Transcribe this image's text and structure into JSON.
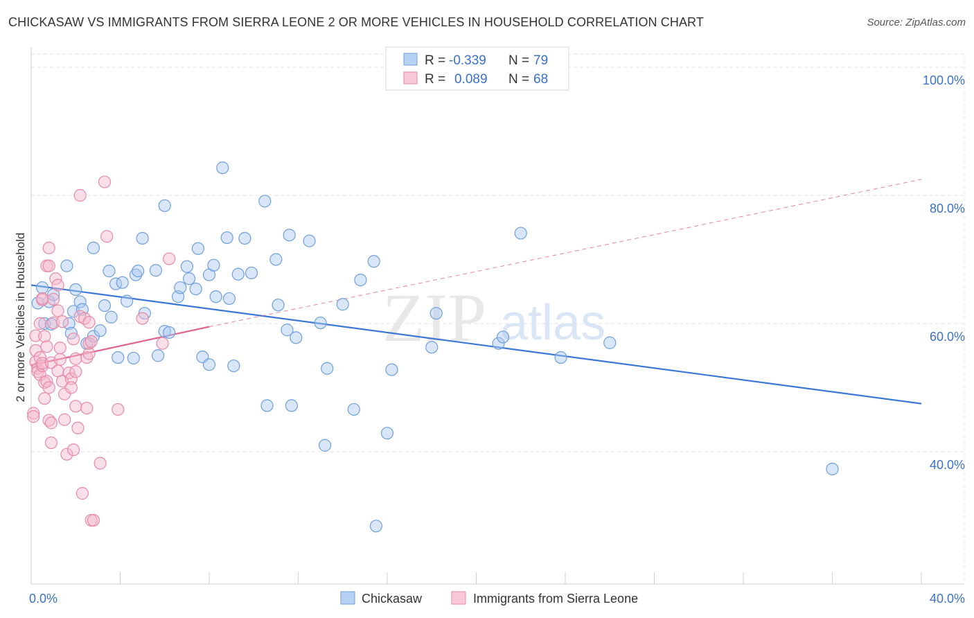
{
  "title": "CHICKASAW VS IMMIGRANTS FROM SIERRA LEONE 2 OR MORE VEHICLES IN HOUSEHOLD CORRELATION CHART",
  "source": "Source: ZipAtlas.com",
  "watermark": {
    "zip": "ZIP",
    "atlas": "atlas"
  },
  "chart_data": {
    "type": "scatter",
    "ylabel": "2 or more Vehicles in Household",
    "xlim": [
      0,
      40
    ],
    "ylim": [
      20,
      102
    ],
    "x_ticks": [
      0,
      4,
      8,
      12,
      16,
      20,
      24,
      28,
      32,
      36,
      40
    ],
    "x_tick_labels": [
      {
        "value": 0,
        "label": "0.0%"
      },
      {
        "value": 40,
        "label": "40.0%"
      }
    ],
    "y_ticks": [
      {
        "value": 40,
        "label": "40.0%"
      },
      {
        "value": 60,
        "label": "60.0%"
      },
      {
        "value": 80,
        "label": "80.0%"
      },
      {
        "value": 100,
        "label": "100.0%"
      }
    ],
    "legend_stats": [
      {
        "r_label": "R =",
        "r_value": "-0.339",
        "n_label": "N =",
        "n_value": "79"
      },
      {
        "r_label": "R =",
        "r_value": "0.089",
        "n_label": "N =",
        "n_value": "68"
      }
    ],
    "series": [
      {
        "name": "Chickasaw",
        "color": "#a8c8ef",
        "stroke": "#6f9fdc",
        "trend_color": "#3a78d4",
        "trend": {
          "x": [
            0,
            40
          ],
          "y": [
            66.0,
            47.5
          ]
        },
        "points": [
          [
            0.3,
            63.2
          ],
          [
            0.5,
            65.6
          ],
          [
            0.6,
            60.0
          ],
          [
            0.8,
            63.4
          ],
          [
            0.9,
            59.9
          ],
          [
            1.0,
            64.5
          ],
          [
            1.6,
            69.0
          ],
          [
            1.7,
            60.0
          ],
          [
            1.9,
            61.9
          ],
          [
            2.0,
            65.3
          ],
          [
            2.2,
            63.4
          ],
          [
            2.3,
            62.2
          ],
          [
            2.5,
            56.9
          ],
          [
            2.8,
            58.0
          ],
          [
            2.8,
            71.8
          ],
          [
            3.1,
            58.9
          ],
          [
            3.3,
            62.8
          ],
          [
            3.5,
            68.2
          ],
          [
            3.6,
            61.0
          ],
          [
            3.8,
            66.2
          ],
          [
            3.9,
            54.7
          ],
          [
            4.1,
            66.4
          ],
          [
            4.3,
            63.5
          ],
          [
            4.6,
            54.6
          ],
          [
            4.7,
            67.6
          ],
          [
            4.8,
            68.2
          ],
          [
            5.0,
            73.3
          ],
          [
            5.1,
            61.6
          ],
          [
            5.6,
            68.3
          ],
          [
            5.7,
            55.0
          ],
          [
            6.0,
            78.4
          ],
          [
            6.0,
            58.8
          ],
          [
            6.2,
            58.6
          ],
          [
            6.6,
            64.2
          ],
          [
            6.7,
            65.6
          ],
          [
            7.0,
            68.9
          ],
          [
            7.1,
            67.0
          ],
          [
            7.4,
            65.4
          ],
          [
            7.5,
            71.7
          ],
          [
            7.7,
            54.8
          ],
          [
            8.0,
            67.6
          ],
          [
            8.0,
            53.6
          ],
          [
            8.2,
            69.1
          ],
          [
            8.3,
            64.2
          ],
          [
            8.6,
            84.3
          ],
          [
            8.8,
            73.4
          ],
          [
            8.9,
            63.9
          ],
          [
            9.1,
            53.4
          ],
          [
            9.3,
            67.7
          ],
          [
            9.6,
            73.3
          ],
          [
            9.9,
            67.9
          ],
          [
            10.5,
            79.1
          ],
          [
            10.6,
            47.2
          ],
          [
            11.0,
            70.0
          ],
          [
            11.1,
            62.9
          ],
          [
            11.5,
            59.0
          ],
          [
            11.6,
            73.8
          ],
          [
            11.7,
            47.2
          ],
          [
            11.9,
            57.8
          ],
          [
            12.5,
            72.9
          ],
          [
            13.0,
            60.1
          ],
          [
            13.3,
            53.0
          ],
          [
            14.0,
            63.0
          ],
          [
            14.5,
            46.6
          ],
          [
            14.8,
            66.8
          ],
          [
            15.4,
            69.7
          ],
          [
            15.5,
            28.4
          ],
          [
            16.0,
            42.9
          ],
          [
            16.2,
            52.8
          ],
          [
            18.0,
            56.3
          ],
          [
            18.2,
            61.6
          ],
          [
            21.0,
            56.9
          ],
          [
            21.2,
            57.9
          ],
          [
            22.0,
            74.1
          ],
          [
            23.8,
            54.7
          ],
          [
            26.0,
            57.0
          ],
          [
            36.0,
            37.3
          ],
          [
            13.2,
            41.0
          ],
          [
            1.8,
            58.5
          ]
        ]
      },
      {
        "name": "Immigrants from Sierra Leone",
        "color": "#f5b8cb",
        "stroke": "#e68aa7",
        "trend_color": "#e0648c",
        "trend": {
          "x": [
            0,
            8
          ],
          "y": [
            53.5,
            59.5
          ]
        },
        "trend_ext": {
          "x": [
            8,
            40
          ],
          "y": [
            59.5,
            82.5
          ]
        },
        "points": [
          [
            0.1,
            46.0
          ],
          [
            0.1,
            45.5
          ],
          [
            0.2,
            58.1
          ],
          [
            0.2,
            55.8
          ],
          [
            0.2,
            54.0
          ],
          [
            0.3,
            53.0
          ],
          [
            0.3,
            52.5
          ],
          [
            0.4,
            54.7
          ],
          [
            0.4,
            52.0
          ],
          [
            0.4,
            60.0
          ],
          [
            0.5,
            53.4
          ],
          [
            0.5,
            53.8
          ],
          [
            0.5,
            63.7
          ],
          [
            0.5,
            63.9
          ],
          [
            0.6,
            50.8
          ],
          [
            0.6,
            48.3
          ],
          [
            0.6,
            58.0
          ],
          [
            0.7,
            69.0
          ],
          [
            0.7,
            56.4
          ],
          [
            0.7,
            51.0
          ],
          [
            0.8,
            69.0
          ],
          [
            0.8,
            44.9
          ],
          [
            0.8,
            50.0
          ],
          [
            0.8,
            71.8
          ],
          [
            0.9,
            44.5
          ],
          [
            0.9,
            41.4
          ],
          [
            0.9,
            53.9
          ],
          [
            1.0,
            63.8
          ],
          [
            1.0,
            60.1
          ],
          [
            1.1,
            67.0
          ],
          [
            1.2,
            66.0
          ],
          [
            1.2,
            62.0
          ],
          [
            1.2,
            52.6
          ],
          [
            1.3,
            56.2
          ],
          [
            1.3,
            54.4
          ],
          [
            1.4,
            51.0
          ],
          [
            1.4,
            60.3
          ],
          [
            1.5,
            45.0
          ],
          [
            1.5,
            49.0
          ],
          [
            1.6,
            39.6
          ],
          [
            1.7,
            52.3
          ],
          [
            1.8,
            51.4
          ],
          [
            1.8,
            50.0
          ],
          [
            1.9,
            40.3
          ],
          [
            1.9,
            57.6
          ],
          [
            2.0,
            47.1
          ],
          [
            2.0,
            54.5
          ],
          [
            2.0,
            52.5
          ],
          [
            2.1,
            43.7
          ],
          [
            2.2,
            61.1
          ],
          [
            2.2,
            80.0
          ],
          [
            2.3,
            33.5
          ],
          [
            2.4,
            60.8
          ],
          [
            2.5,
            54.7
          ],
          [
            2.5,
            46.8
          ],
          [
            2.6,
            60.2
          ],
          [
            2.6,
            55.3
          ],
          [
            2.6,
            56.9
          ],
          [
            2.7,
            57.2
          ],
          [
            2.7,
            29.3
          ],
          [
            2.8,
            29.3
          ],
          [
            3.1,
            38.2
          ],
          [
            3.3,
            82.1
          ],
          [
            3.4,
            73.6
          ],
          [
            3.9,
            46.6
          ],
          [
            5.0,
            60.8
          ],
          [
            5.9,
            56.9
          ],
          [
            6.2,
            70.1
          ]
        ]
      }
    ]
  },
  "bottom_legend": [
    "Chickasaw",
    "Immigrants from Sierra Leone"
  ]
}
